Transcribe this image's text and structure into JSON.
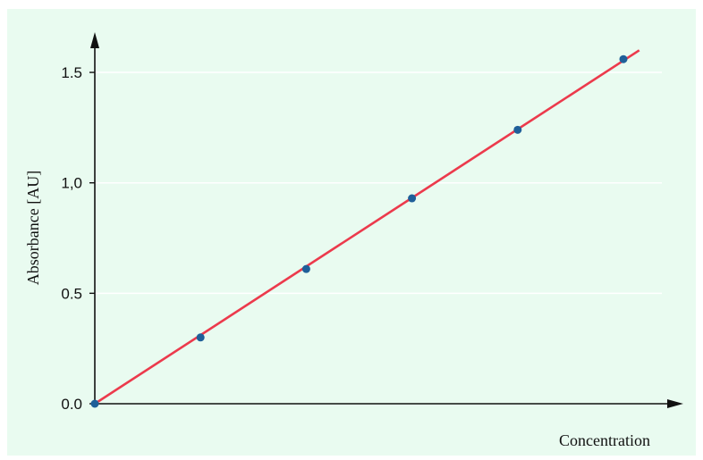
{
  "colors": {
    "background": "#e9fbf0",
    "line": "#ec3a4c",
    "points": "#1f5f99",
    "axis": "#111111",
    "grid": "#ffffff"
  },
  "chart_data": {
    "type": "scatter",
    "title": "",
    "xlabel": "Concentration",
    "ylabel": "Absorbance [AU]",
    "ylim": [
      0,
      1.6
    ],
    "xlim": [
      0,
      5.5
    ],
    "yticks": [
      {
        "value": 0.0,
        "label": "0.0"
      },
      {
        "value": 0.5,
        "label": "0.5"
      },
      {
        "value": 1.0,
        "label": "1,0"
      },
      {
        "value": 1.5,
        "label": "1.5"
      }
    ],
    "grid": "horizontal",
    "series": [
      {
        "x": [
          0,
          1,
          2,
          3,
          4,
          5
        ],
        "y": [
          0.0,
          0.3,
          0.61,
          0.93,
          1.24,
          1.56
        ]
      }
    ],
    "fit_line": {
      "x": [
        0,
        5.15
      ],
      "y": [
        0,
        1.6
      ]
    }
  }
}
